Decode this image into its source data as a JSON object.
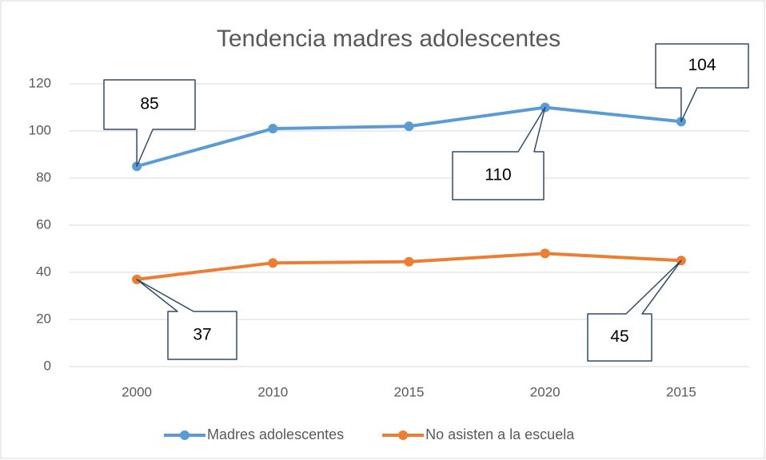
{
  "chart_data": {
    "type": "line",
    "title": "Tendencia madres adolescentes",
    "categories": [
      "2000",
      "2010",
      "2015",
      "2020",
      "2015"
    ],
    "series": [
      {
        "name": "Madres adolescentes",
        "color": "#5b9bd5",
        "values": [
          85,
          101,
          102,
          110,
          104
        ],
        "labeled_points": [
          0,
          3,
          4
        ]
      },
      {
        "name": "No asisten a la escuela",
        "color": "#ed7d31",
        "values": [
          37,
          44,
          44.5,
          48,
          45
        ],
        "labeled_points": [
          0,
          4
        ]
      }
    ],
    "ylim": [
      0,
      120
    ],
    "yticks": [
      0,
      20,
      40,
      60,
      80,
      100,
      120
    ],
    "grid": true,
    "legend": "bottom"
  }
}
